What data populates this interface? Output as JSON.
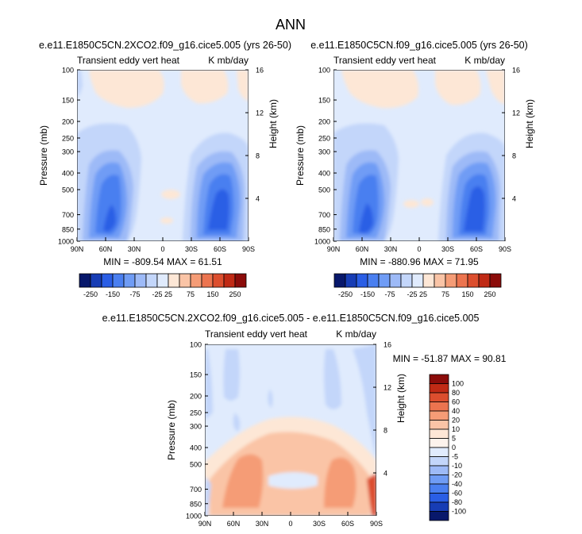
{
  "title": "ANN",
  "panels": [
    {
      "title": "e.e11.E1850C5CN.2XCO2.f09_g16.cice5.005 (yrs 26-50)",
      "left_label": "Transient eddy vert heat",
      "right_label": "K mb/day",
      "min_max": "MIN = -809.54   MAX = 61.51"
    },
    {
      "title": "e.e11.E1850C5CN.f09_g16.cice5.005 (yrs 26-50)",
      "left_label": "Transient eddy vert heat",
      "right_label": "K mb/day",
      "min_max": "MIN = -880.96   MAX = 71.95"
    },
    {
      "title": "e.e11.E1850C5CN.2XCO2.f09_g16.cice5.005 - e.e11.E1850C5CN.f09_g16.cice5.005",
      "left_label": "Transient eddy vert heat",
      "right_label": "K mb/day",
      "min_max": "MIN = -51.87   MAX = 90.81"
    }
  ],
  "axes": {
    "ylabel": "Pressure (mb)",
    "ylabel_right": "Height (km)",
    "pressure_ticks": [
      "100",
      "150",
      "200",
      "250",
      "300",
      "400",
      "500",
      "700",
      "850",
      "1000"
    ],
    "pressure_values": [
      100,
      150,
      200,
      250,
      300,
      400,
      500,
      700,
      850,
      1000
    ],
    "lat_ticks": [
      "90N",
      "60N",
      "30N",
      "0",
      "30S",
      "60S",
      "90S"
    ],
    "height_ticks": [
      "16",
      "12",
      "8",
      "4"
    ],
    "height_values": [
      16,
      12,
      8,
      4
    ]
  },
  "colorbar_top": {
    "labels": [
      "-250",
      "-150",
      "-75",
      "-25",
      "25",
      "75",
      "150",
      "250"
    ],
    "colors": [
      "#08186b",
      "#173db5",
      "#2a5ee5",
      "#4a7ff0",
      "#6f9cf5",
      "#9dbaf7",
      "#c3d6fa",
      "#e0ebfd",
      "#fde7d6",
      "#fac4a6",
      "#f59c76",
      "#ec744f",
      "#dc4e2e",
      "#c02a15",
      "#8b0c0a"
    ]
  },
  "colorbar_diff": {
    "labels": [
      "100",
      "80",
      "60",
      "40",
      "20",
      "10",
      "5",
      "0",
      "-5",
      "-10",
      "-20",
      "-40",
      "-60",
      "-80",
      "-100"
    ],
    "colors": [
      "#8b0c0a",
      "#c02a15",
      "#dc4e2e",
      "#ec744f",
      "#f59c76",
      "#fac4a6",
      "#fde7d6",
      "#fdf3ec",
      "#e0ebfd",
      "#c3d6fa",
      "#9dbaf7",
      "#6f9cf5",
      "#4a7ff0",
      "#2a5ee5",
      "#173db5",
      "#08186b"
    ]
  },
  "chart_data": [
    {
      "type": "heatmap",
      "title": "e.e11.E1850C5CN.2XCO2.f09_g16.cice5.005 (yrs 26-50)",
      "variable": "Transient eddy vert heat",
      "units": "K mb/day",
      "xlabel": "",
      "ylabel": "Pressure (mb)",
      "ylabel_right": "Height (km)",
      "x_range": [
        "90N",
        "90S"
      ],
      "y_range": [
        1000,
        100
      ],
      "y_scale": "log",
      "contour_levels": [
        -250,
        -150,
        -75,
        -25,
        25,
        75,
        150,
        250
      ],
      "min": -809.54,
      "max": 61.51
    },
    {
      "type": "heatmap",
      "title": "e.e11.E1850C5CN.f09_g16.cice5.005 (yrs 26-50)",
      "variable": "Transient eddy vert heat",
      "units": "K mb/day",
      "xlabel": "",
      "ylabel": "Pressure (mb)",
      "ylabel_right": "Height (km)",
      "x_range": [
        "90N",
        "90S"
      ],
      "y_range": [
        1000,
        100
      ],
      "y_scale": "log",
      "contour_levels": [
        -250,
        -150,
        -75,
        -25,
        25,
        75,
        150,
        250
      ],
      "min": -880.96,
      "max": 71.95
    },
    {
      "type": "heatmap",
      "title": "e.e11.E1850C5CN.2XCO2.f09_g16.cice5.005 - e.e11.E1850C5CN.f09_g16.cice5.005",
      "variable": "Transient eddy vert heat",
      "units": "K mb/day",
      "xlabel": "",
      "ylabel": "Pressure (mb)",
      "ylabel_right": "Height (km)",
      "x_range": [
        "90N",
        "90S"
      ],
      "y_range": [
        1000,
        100
      ],
      "y_scale": "log",
      "contour_levels": [
        -100,
        -80,
        -60,
        -40,
        -20,
        -10,
        -5,
        0,
        5,
        10,
        20,
        40,
        60,
        80,
        100
      ],
      "min": -51.87,
      "max": 90.81
    }
  ]
}
